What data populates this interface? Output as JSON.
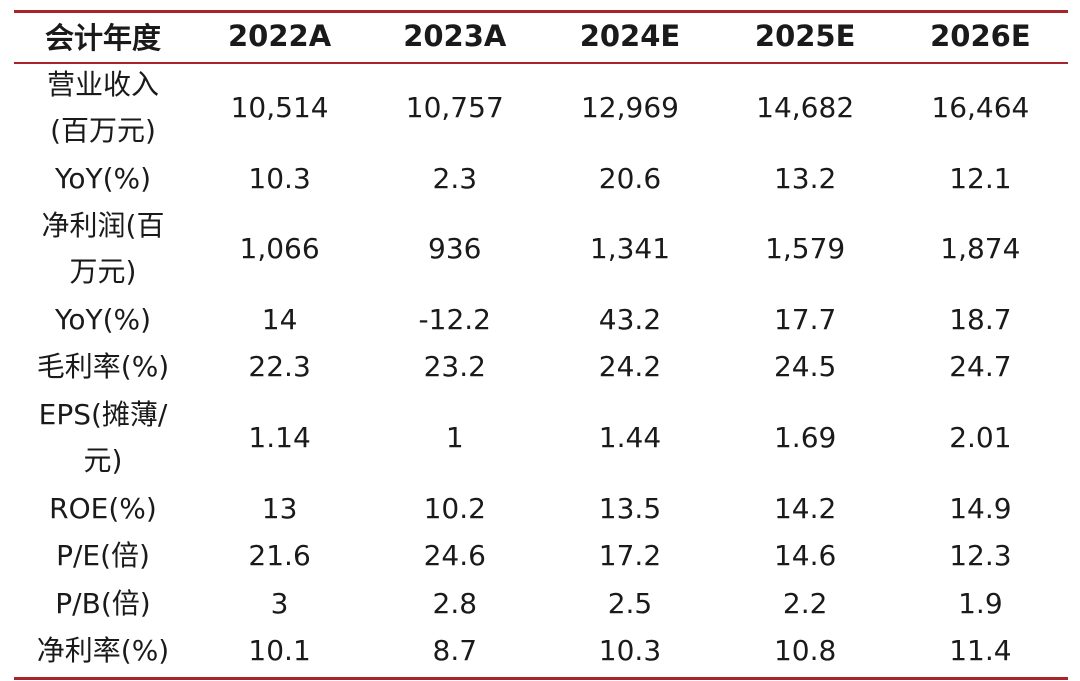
{
  "table": {
    "header": [
      "会计年度",
      "2022A",
      "2023A",
      "2024E",
      "2025E",
      "2026E"
    ],
    "rows": [
      {
        "label": "营业收入\n(百万元)",
        "values": [
          "10,514",
          "10,757",
          "12,969",
          "14,682",
          "16,464"
        ]
      },
      {
        "label": "YoY(%)",
        "values": [
          "10.3",
          "2.3",
          "20.6",
          "13.2",
          "12.1"
        ]
      },
      {
        "label": "净利润(百\n万元)",
        "values": [
          "1,066",
          "936",
          "1,341",
          "1,579",
          "1,874"
        ]
      },
      {
        "label": "YoY(%)",
        "values": [
          "14",
          "-12.2",
          "43.2",
          "17.7",
          "18.7"
        ]
      },
      {
        "label": "毛利率(%)",
        "values": [
          "22.3",
          "23.2",
          "24.2",
          "24.5",
          "24.7"
        ]
      },
      {
        "label": "EPS(摊薄/\n元)",
        "values": [
          "1.14",
          "1",
          "1.44",
          "1.69",
          "2.01"
        ]
      },
      {
        "label": "ROE(%)",
        "values": [
          "13",
          "10.2",
          "13.5",
          "14.2",
          "14.9"
        ]
      },
      {
        "label": "P/E(倍)",
        "values": [
          "21.6",
          "24.6",
          "17.2",
          "14.6",
          "12.3"
        ]
      },
      {
        "label": "P/B(倍)",
        "values": [
          "3",
          "2.8",
          "2.5",
          "2.2",
          "1.9"
        ]
      },
      {
        "label": "净利率(%)",
        "values": [
          "10.1",
          "8.7",
          "10.3",
          "10.8",
          "11.4"
        ]
      }
    ]
  }
}
